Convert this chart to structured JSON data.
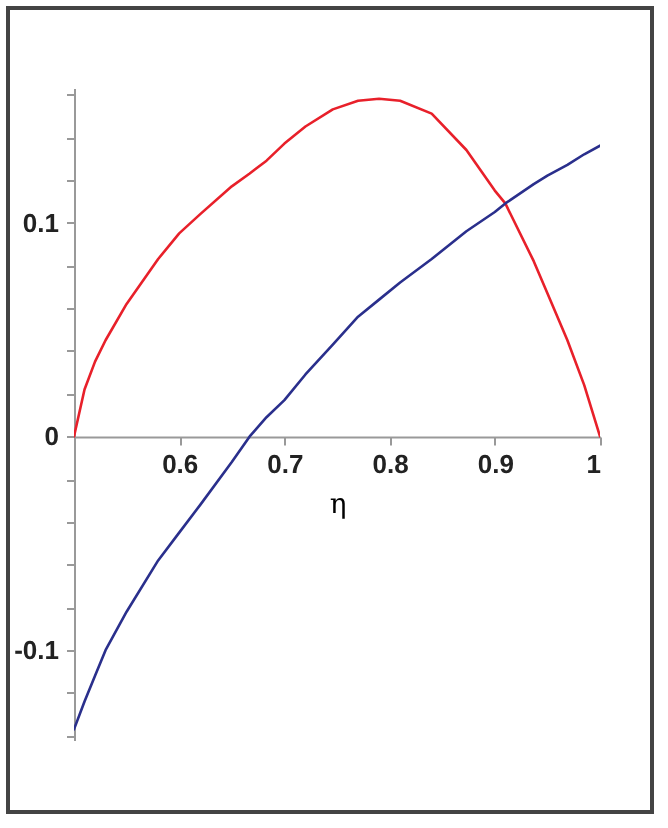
{
  "chart_data": {
    "type": "line",
    "xlabel": "η",
    "x": [
      0.5,
      0.51,
      0.52,
      0.53,
      0.55,
      0.58,
      0.6,
      0.62,
      0.65,
      0.667,
      0.683,
      0.7,
      0.72,
      0.746,
      0.77,
      0.79,
      0.81,
      0.84,
      0.873,
      0.9,
      0.91,
      0.937,
      0.95,
      0.969,
      0.985,
      1
    ],
    "series": [
      {
        "color": "#e8202a",
        "values": [
          0,
          0.022,
          0.035,
          0.045,
          0.062,
          0.083,
          0.095,
          0.104,
          0.117,
          0.123,
          0.129,
          0.137,
          0.145,
          0.153,
          0.157,
          0.158,
          0.157,
          0.151,
          0.134,
          0.115,
          0.109,
          0.082,
          0.067,
          0.045,
          0.024,
          0
        ]
      },
      {
        "color": "#2a2f8c",
        "values": [
          -0.137,
          -0.124,
          -0.112,
          -0.1,
          -0.082,
          -0.058,
          -0.045,
          -0.032,
          -0.012,
          0,
          0.009,
          0.017,
          0.029,
          0.043,
          0.056,
          0.064,
          0.072,
          0.083,
          0.096,
          0.105,
          0.109,
          0.118,
          0.122,
          0.127,
          0.132,
          0.136
        ]
      }
    ],
    "xlim": [
      0.5,
      1
    ],
    "xticks": [
      0.6,
      0.7,
      0.8,
      0.9,
      1
    ],
    "ylim": [
      -0.142,
      0.163
    ],
    "yticks": [
      {
        "value": -0.14,
        "label": null
      },
      {
        "value": -0.12,
        "label": null
      },
      -0.1,
      {
        "value": -0.08,
        "label": null
      },
      {
        "value": -0.06,
        "label": null
      },
      {
        "value": -0.04,
        "label": null
      },
      {
        "value": -0.02,
        "label": null
      },
      0,
      {
        "value": 0.02,
        "label": null
      },
      {
        "value": 0.04,
        "label": null
      },
      {
        "value": 0.06,
        "label": null
      },
      {
        "value": 0.08,
        "label": null
      },
      0.1,
      {
        "value": 0.12,
        "label": null
      },
      {
        "value": 0.14,
        "label": null
      },
      {
        "value": 0.16,
        "label": null
      }
    ],
    "grid": false,
    "legend": false,
    "marker": "none",
    "line_style": "solid"
  }
}
